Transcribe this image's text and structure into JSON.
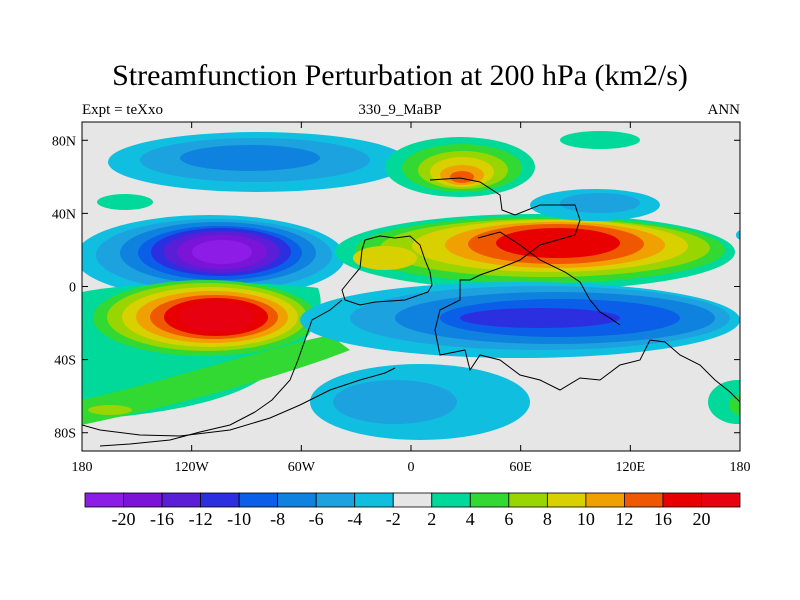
{
  "chart_data": {
    "type": "heatmap",
    "title": "Streamfunction Perturbation at 200 hPa (km2/s)",
    "subtitle_left": "Expt = teXxo",
    "subtitle_center": "330_9_MaBP",
    "subtitle_right": "ANN",
    "x_ticks": [
      "180",
      "120W",
      "60W",
      "0",
      "60E",
      "120E",
      "180"
    ],
    "x_tick_values": [
      -180,
      -120,
      -60,
      0,
      60,
      120,
      180
    ],
    "y_ticks": [
      "80N",
      "40N",
      "0",
      "40S",
      "80S"
    ],
    "y_tick_values": [
      80,
      40,
      0,
      -40,
      -80
    ],
    "xlim": [
      -180,
      180
    ],
    "ylim": [
      -90,
      90
    ],
    "colorbar": {
      "labels": [
        "-20",
        "-16",
        "-12",
        "-10",
        "-8",
        "-6",
        "-4",
        "-2",
        "2",
        "4",
        "6",
        "8",
        "10",
        "12",
        "16",
        "20"
      ],
      "colors": [
        "#8c1ce6",
        "#7c14d8",
        "#5a1ed6",
        "#2b2fe0",
        "#0a5ee8",
        "#0f82e0",
        "#1da2e0",
        "#10bfe0",
        "#e6e6e6",
        "#00d99a",
        "#33d933",
        "#99d500",
        "#d9d000",
        "#f0a000",
        "#f05800",
        "#e80000",
        "#e60010"
      ]
    },
    "features": [
      {
        "name": "negative-center-north-pacific",
        "lon": -100,
        "lat": 15,
        "value": -20
      },
      {
        "name": "positive-center-south-pacific",
        "lon": -100,
        "lat": -18,
        "value": 20
      },
      {
        "name": "positive-center-asia-subtropics",
        "lon": 60,
        "lat": 20,
        "value": 16
      },
      {
        "name": "negative-center-indian-ocean",
        "lon": 80,
        "lat": -18,
        "value": -10
      },
      {
        "name": "positive-center-europe",
        "lon": 25,
        "lat": 57,
        "value": 12
      },
      {
        "name": "negative-band-north-pacific",
        "lon": -110,
        "lat": 70,
        "value": -6
      },
      {
        "name": "negative-center-south-atlantic",
        "lon": -20,
        "lat": -65,
        "value": -6
      }
    ]
  }
}
